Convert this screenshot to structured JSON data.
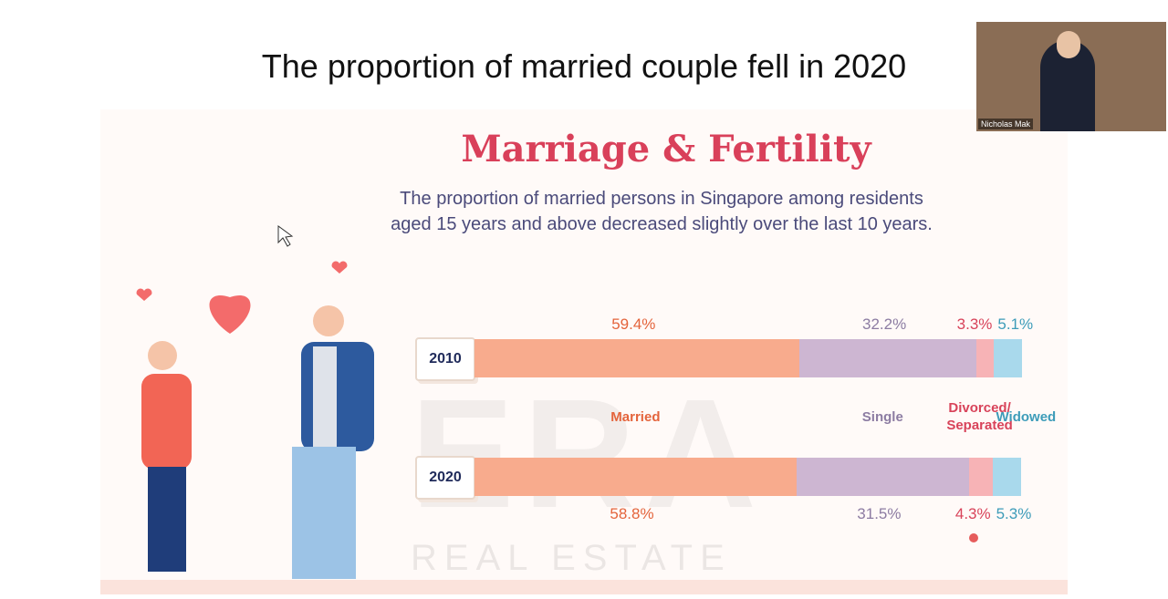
{
  "slide_heading": "The proportion of married couple fell in 2020",
  "video": {
    "participant": "Nicholas Mak"
  },
  "watermark": {
    "logo": "ERA",
    "text": "REAL ESTATE"
  },
  "chart_data": {
    "type": "stacked_bar",
    "title": "Marriage & Fertility",
    "subtitle": "The proportion of married persons in Singapore among residents aged 15 years and above decreased slightly over the last 10 years.",
    "categories": [
      "2010",
      "2020"
    ],
    "xlim": [
      0,
      100
    ],
    "series": [
      {
        "name": "Married",
        "color": "#f8ab8d",
        "values": [
          59.4,
          58.8
        ],
        "value_labels": [
          "59.4%",
          "58.8%"
        ]
      },
      {
        "name": "Single",
        "color": "#cdb6d2",
        "values": [
          32.2,
          31.5
        ],
        "value_labels": [
          "32.2%",
          "31.5%"
        ]
      },
      {
        "name": "Divorced/ Separated",
        "color": "#f7b3b6",
        "values": [
          3.3,
          4.3
        ],
        "value_labels": [
          "3.3%",
          "4.3%"
        ]
      },
      {
        "name": "Widowed",
        "color": "#a9d9ec",
        "values": [
          5.1,
          5.3
        ],
        "value_labels": [
          "5.1%",
          "5.3%"
        ]
      }
    ],
    "label_colors": [
      "#e4643c",
      "#8c7ca2",
      "#d8435a",
      "#3d9cb9"
    ]
  }
}
